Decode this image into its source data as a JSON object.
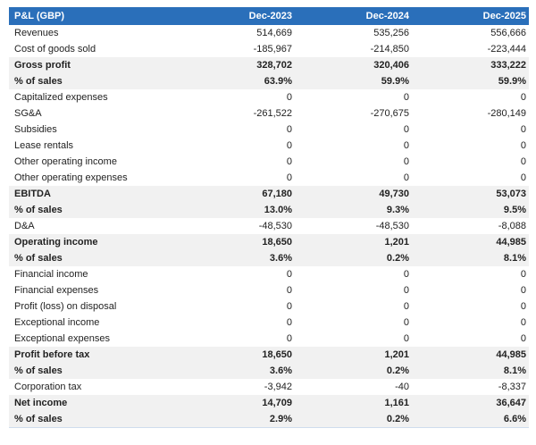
{
  "table": {
    "header": [
      "P&L (GBP)",
      "Dec-2023",
      "Dec-2024",
      "Dec-2025"
    ],
    "rows": [
      [
        "Revenues",
        "514,669",
        "535,256",
        "556,666"
      ],
      [
        "Cost of goods sold",
        "-185,967",
        "-214,850",
        "-223,444"
      ],
      [
        "Gross profit",
        "328,702",
        "320,406",
        "333,222"
      ],
      [
        "% of sales",
        "63.9%",
        "59.9%",
        "59.9%"
      ],
      [
        "Capitalized expenses",
        "0",
        "0",
        "0"
      ],
      [
        "SG&A",
        "-261,522",
        "-270,675",
        "-280,149"
      ],
      [
        "Subsidies",
        "0",
        "0",
        "0"
      ],
      [
        "Lease rentals",
        "0",
        "0",
        "0"
      ],
      [
        "Other operating income",
        "0",
        "0",
        "0"
      ],
      [
        "Other operating expenses",
        "0",
        "0",
        "0"
      ],
      [
        "EBITDA",
        "67,180",
        "49,730",
        "53,073"
      ],
      [
        "% of sales",
        "13.0%",
        "9.3%",
        "9.5%"
      ],
      [
        "D&A",
        "-48,530",
        "-48,530",
        "-8,088"
      ],
      [
        "Operating income",
        "18,650",
        "1,201",
        "44,985"
      ],
      [
        "% of sales",
        "3.6%",
        "0.2%",
        "8.1%"
      ],
      [
        "Financial income",
        "0",
        "0",
        "0"
      ],
      [
        "Financial expenses",
        "0",
        "0",
        "0"
      ],
      [
        "Profit (loss) on disposal",
        "0",
        "0",
        "0"
      ],
      [
        "Exceptional income",
        "0",
        "0",
        "0"
      ],
      [
        "Exceptional expenses",
        "0",
        "0",
        "0"
      ],
      [
        "Profit before tax",
        "18,650",
        "1,201",
        "44,985"
      ],
      [
        "% of sales",
        "3.6%",
        "0.2%",
        "8.1%"
      ],
      [
        "Corporation tax",
        "-3,942",
        "-40",
        "-8,337"
      ],
      [
        "Net income",
        "14,709",
        "1,161",
        "36,647"
      ],
      [
        "% of sales",
        "2.9%",
        "0.2%",
        "6.6%"
      ]
    ]
  }
}
